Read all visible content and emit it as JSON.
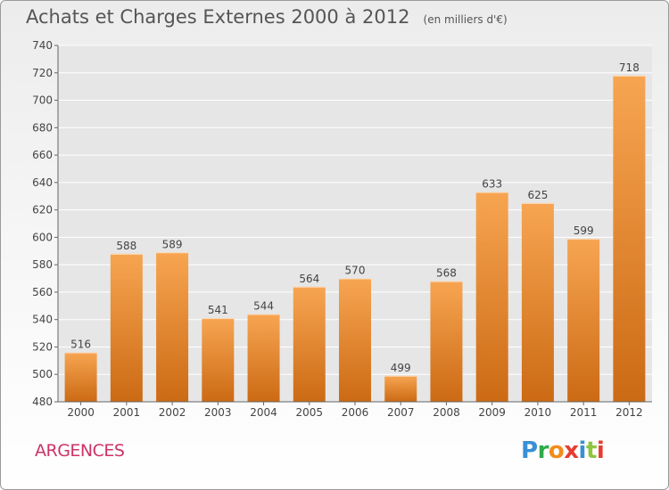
{
  "title": "Achats et Charges Externes 2000 à 2012",
  "unit": "(en milliers d'€)",
  "commune": "ARGENCES",
  "logo": {
    "text": "Proxiti",
    "letters": [
      {
        "char": "P",
        "color": "#3a8fd6"
      },
      {
        "char": "r",
        "color": "#2eaa4a"
      },
      {
        "char": "o",
        "color": "#f28c1a"
      },
      {
        "char": "x",
        "color": "#e63c2f"
      },
      {
        "char": "i",
        "color": "#3a8fd6"
      },
      {
        "char": "t",
        "color": "#8dc63f"
      },
      {
        "char": "i",
        "color": "#e63c2f"
      }
    ]
  },
  "colors": {
    "bar_light": "#f7a552",
    "bar_dark": "#cc6a14",
    "title": "#555555",
    "commune": "#cc3366",
    "grid": "#ffffff",
    "axis": "#666666"
  },
  "chart_data": {
    "type": "bar",
    "categories": [
      "2000",
      "2001",
      "2002",
      "2003",
      "2004",
      "2005",
      "2006",
      "2007",
      "2008",
      "2009",
      "2010",
      "2011",
      "2012"
    ],
    "values": [
      516,
      588,
      589,
      541,
      544,
      564,
      570,
      499,
      568,
      633,
      625,
      599,
      718
    ],
    "ylim": [
      480,
      740
    ],
    "yticks": [
      480,
      500,
      520,
      540,
      560,
      580,
      600,
      620,
      640,
      660,
      680,
      700,
      720,
      740
    ],
    "data_labels": true,
    "grid": true
  }
}
